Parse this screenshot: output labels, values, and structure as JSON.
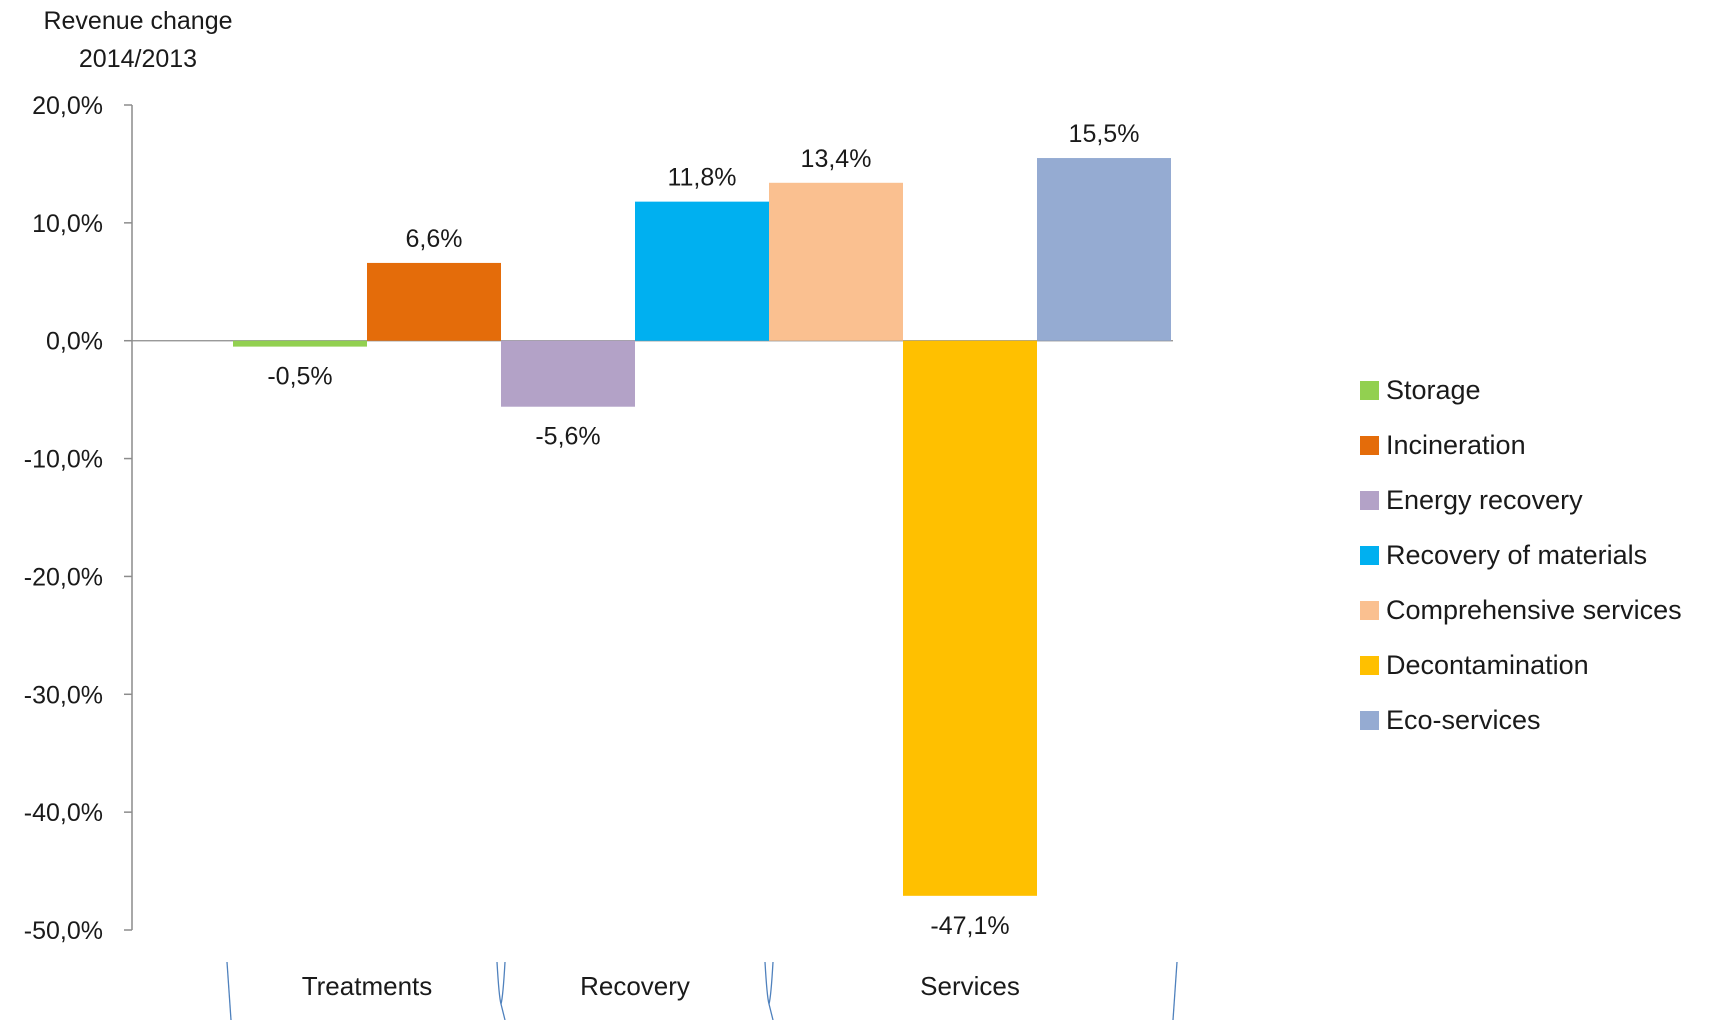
{
  "chart_data": {
    "type": "bar",
    "ylabel_lines": [
      "Revenue change",
      "2014/2013"
    ],
    "ylim": [
      -50,
      20
    ],
    "yticks": [
      20,
      10,
      0,
      -10,
      -20,
      -30,
      -40,
      -50
    ],
    "ytick_labels": [
      "20,0%",
      "10,0%",
      "0,0%",
      "-10,0%",
      "-20,0%",
      "-30,0%",
      "-40,0%",
      "-50,0%"
    ],
    "groups": [
      {
        "label": "Treatments",
        "bars": 2
      },
      {
        "label": "Recovery",
        "bars": 2
      },
      {
        "label": "Services",
        "bars": 3
      }
    ],
    "series": [
      {
        "name": "Storage",
        "value": -0.5,
        "label": "-0,5%",
        "color": "#92d050"
      },
      {
        "name": "Incineration",
        "value": 6.6,
        "label": "6,6%",
        "color": "#e46c0a"
      },
      {
        "name": "Energy recovery",
        "value": -5.6,
        "label": "-5,6%",
        "color": "#b3a2c7"
      },
      {
        "name": "Recovery of materials",
        "value": 11.8,
        "label": "11,8%",
        "color": "#00b0f0"
      },
      {
        "name": "Comprehensive services",
        "value": 13.4,
        "label": "13,4%",
        "color": "#fac090"
      },
      {
        "name": "Decontamination",
        "value": -47.1,
        "label": "-47,1%",
        "color": "#ffc000"
      },
      {
        "name": "Eco-services",
        "value": 15.5,
        "label": "15,5%",
        "color": "#95abd2"
      }
    ],
    "legend_position": "right",
    "grid": false,
    "bracket_color": "#4f81bd"
  }
}
